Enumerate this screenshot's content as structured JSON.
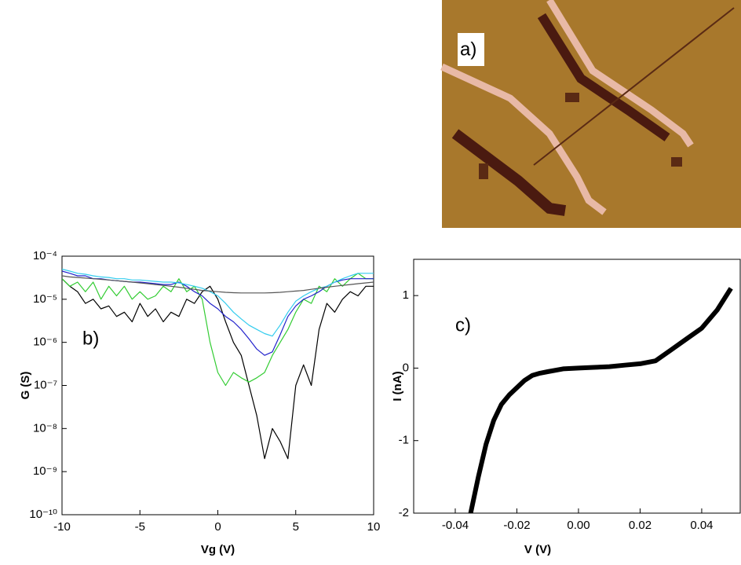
{
  "panel_a": {
    "label": "a)"
  },
  "chart_data": [
    {
      "type": "line",
      "annotation": "b)",
      "x_label": "Vg (V)",
      "y_label": "G (S)",
      "log_y": true,
      "x": [
        -10,
        -9.5,
        -9,
        -8.5,
        -8,
        -7.5,
        -7,
        -6.5,
        -6,
        -5.5,
        -5,
        -4.5,
        -4,
        -3.5,
        -3,
        -2.5,
        -2,
        -1.5,
        -1,
        -0.5,
        0,
        0.5,
        1,
        1.5,
        2,
        2.5,
        3,
        3.5,
        4,
        4.5,
        5,
        5.5,
        6,
        6.5,
        7,
        7.5,
        8,
        8.5,
        9,
        9.5,
        10
      ],
      "series": [
        {
          "color": "#000000",
          "values": [
            3e-05,
            2e-05,
            1.5e-05,
            8e-06,
            1e-05,
            6e-06,
            7e-06,
            4e-06,
            5e-06,
            3e-06,
            8e-06,
            4e-06,
            6e-06,
            3e-06,
            5e-06,
            4e-06,
            1e-05,
            8e-06,
            1.5e-05,
            2e-05,
            1e-05,
            3e-06,
            1e-06,
            5e-07,
            1e-07,
            2e-08,
            2e-09,
            1e-08,
            5e-09,
            2e-09,
            1e-07,
            3e-07,
            1e-07,
            2e-06,
            8e-06,
            5e-06,
            1e-05,
            1.5e-05,
            1.2e-05,
            2e-05,
            2e-05
          ]
        },
        {
          "color": "#33cc33",
          "values": [
            3e-05,
            2e-05,
            2.5e-05,
            1.5e-05,
            2.5e-05,
            1e-05,
            2e-05,
            1.2e-05,
            2e-05,
            1e-05,
            1.5e-05,
            1e-05,
            1.2e-05,
            2e-05,
            1.5e-05,
            3e-05,
            1.5e-05,
            2e-05,
            1e-05,
            1e-06,
            2e-07,
            1e-07,
            2e-07,
            1.5e-07,
            1.2e-07,
            1.5e-07,
            2e-07,
            5e-07,
            1e-06,
            2e-06,
            5e-06,
            1e-05,
            8e-06,
            2e-05,
            1.5e-05,
            3e-05,
            2e-05,
            3e-05,
            4e-05,
            3e-05,
            3e-05
          ]
        },
        {
          "color": "#2222cc",
          "values": [
            4.5e-05,
            4e-05,
            3.5e-05,
            3.5e-05,
            3e-05,
            3e-05,
            2.8e-05,
            2.7e-05,
            2.6e-05,
            2.5e-05,
            2.5e-05,
            2.4e-05,
            2.3e-05,
            2.2e-05,
            2.2e-05,
            2.5e-05,
            2e-05,
            1.5e-05,
            1.2e-05,
            8e-06,
            6e-06,
            4e-06,
            3e-06,
            2e-06,
            1.2e-06,
            7e-07,
            5e-07,
            6e-07,
            1.5e-06,
            4e-06,
            7e-06,
            1e-05,
            1.2e-05,
            1.5e-05,
            2e-05,
            2.5e-05,
            2.8e-05,
            3e-05,
            3e-05,
            3e-05,
            3e-05
          ]
        },
        {
          "color": "#33ccee",
          "values": [
            5e-05,
            4.5e-05,
            4e-05,
            3.8e-05,
            3.5e-05,
            3.3e-05,
            3.2e-05,
            3e-05,
            3e-05,
            2.8e-05,
            2.8e-05,
            2.7e-05,
            2.6e-05,
            2.5e-05,
            2.5e-05,
            2.4e-05,
            2.2e-05,
            2e-05,
            1.8e-05,
            1.5e-05,
            1.2e-05,
            8e-06,
            5e-06,
            3.5e-06,
            2.5e-06,
            2e-06,
            1.6e-06,
            1.4e-06,
            2.5e-06,
            5e-06,
            9e-06,
            1.2e-05,
            1.5e-05,
            1.8e-05,
            2e-05,
            2.5e-05,
            3e-05,
            3.5e-05,
            4e-05,
            4e-05,
            4e-05
          ]
        },
        {
          "color": "#555555",
          "values": [
            3.5e-05,
            3.3e-05,
            3.2e-05,
            3.1e-05,
            3e-05,
            2.9e-05,
            2.8e-05,
            2.7e-05,
            2.6e-05,
            2.5e-05,
            2.4e-05,
            2.3e-05,
            2.2e-05,
            2.1e-05,
            2e-05,
            1.9e-05,
            1.8e-05,
            1.7e-05,
            1.6e-05,
            1.55e-05,
            1.5e-05,
            1.45e-05,
            1.42e-05,
            1.4e-05,
            1.4e-05,
            1.4e-05,
            1.4e-05,
            1.42e-05,
            1.45e-05,
            1.5e-05,
            1.55e-05,
            1.6e-05,
            1.7e-05,
            1.8e-05,
            1.9e-05,
            2e-05,
            2.1e-05,
            2.2e-05,
            2.3e-05,
            2.4e-05,
            2.5e-05
          ]
        }
      ],
      "xlim": [
        -10,
        10
      ],
      "xticks": [
        -10,
        -5,
        0,
        5,
        10
      ],
      "ylim": [
        1e-10,
        0.0001
      ],
      "yticks": [
        {
          "value": 1e-10,
          "label": "10⁻¹⁰"
        },
        {
          "value": 1e-09,
          "label": "10⁻⁹"
        },
        {
          "value": 1e-08,
          "label": "10⁻⁸"
        },
        {
          "value": 1e-07,
          "label": "10⁻⁷"
        },
        {
          "value": 1e-06,
          "label": "10⁻⁶"
        },
        {
          "value": 1e-05,
          "label": "10⁻⁵"
        },
        {
          "value": 0.0001,
          "label": "10⁻⁴"
        }
      ]
    },
    {
      "type": "line",
      "annotation": "c)",
      "x_label": "V (V)",
      "y_label": "I (nA)",
      "log_y": false,
      "line_width": 6,
      "x": [
        -0.035,
        -0.0325,
        -0.03,
        -0.0275,
        -0.025,
        -0.0225,
        -0.02,
        -0.0175,
        -0.015,
        -0.0125,
        -0.01,
        -0.005,
        0,
        0.005,
        0.01,
        0.015,
        0.02,
        0.025,
        0.03,
        0.035,
        0.04,
        0.045,
        0.0495
      ],
      "series": [
        {
          "color": "#000000",
          "values": [
            -2,
            -1.5,
            -1.05,
            -0.72,
            -0.5,
            -0.37,
            -0.27,
            -0.17,
            -0.1,
            -0.07,
            -0.05,
            -0.01,
            0,
            0.01,
            0.02,
            0.04,
            0.06,
            0.1,
            0.25,
            0.4,
            0.55,
            0.8,
            1.1
          ]
        }
      ],
      "xlim": [
        -0.0535,
        0.0525
      ],
      "xticks": [
        -0.04,
        -0.02,
        {
          "value": 0,
          "label": "0.00"
        },
        0.02,
        0.04
      ],
      "ylim": [
        -2,
        1.5
      ],
      "yticks": [
        -2,
        -1,
        0,
        1
      ]
    }
  ]
}
